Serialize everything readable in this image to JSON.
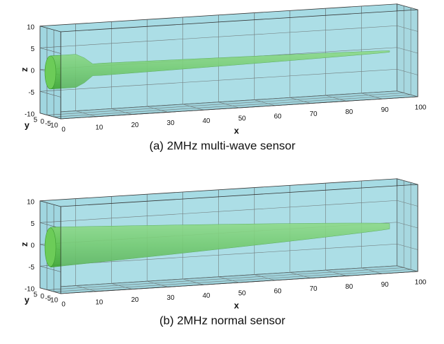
{
  "panels": [
    {
      "caption": "(a) 2MHz multi-wave sensor",
      "x_axis": {
        "label": "x",
        "ticks": [
          "0",
          "10",
          "20",
          "30",
          "40",
          "50",
          "60",
          "70",
          "80",
          "90",
          "100"
        ]
      },
      "y_axis": {
        "label": "y",
        "ticks": [
          "5",
          "0",
          "-5",
          "-10"
        ]
      },
      "z_axis": {
        "label": "z",
        "ticks": [
          "10",
          "5",
          "0",
          "-5",
          "-10"
        ]
      }
    },
    {
      "caption": "(b) 2MHz normal sensor",
      "x_axis": {
        "label": "x",
        "ticks": [
          "0",
          "10",
          "20",
          "30",
          "40",
          "50",
          "60",
          "70",
          "80",
          "90",
          "100"
        ]
      },
      "y_axis": {
        "label": "y",
        "ticks": [
          "5",
          "0",
          "-5",
          "-10"
        ]
      },
      "z_axis": {
        "label": "z",
        "ticks": [
          "10",
          "5",
          "0",
          "-5",
          "-10"
        ]
      }
    }
  ]
}
